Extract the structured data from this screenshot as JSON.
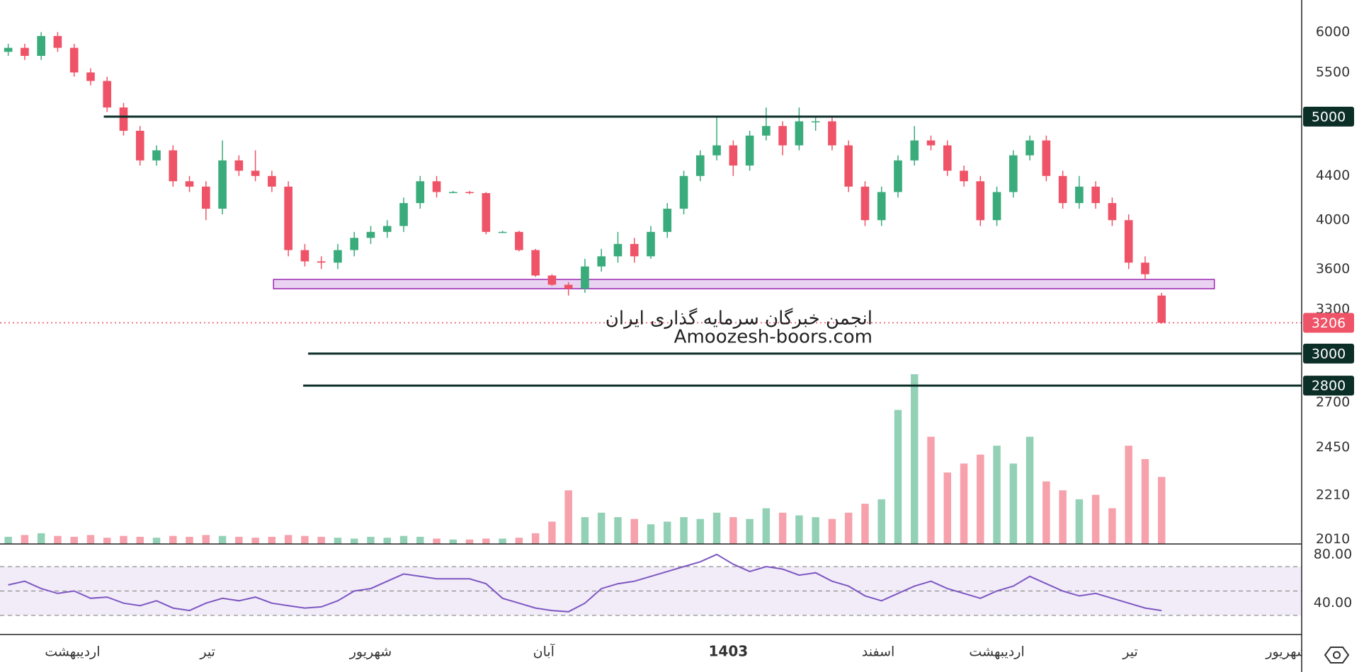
{
  "chart_data": {
    "type": "candlestick",
    "ohlc": [
      [
        5750,
        5850,
        5700,
        5800
      ],
      [
        5800,
        5850,
        5650,
        5700
      ],
      [
        5700,
        6000,
        5650,
        5950
      ],
      [
        5950,
        6000,
        5750,
        5800
      ],
      [
        5800,
        5850,
        5450,
        5500
      ],
      [
        5500,
        5550,
        5350,
        5400
      ],
      [
        5400,
        5450,
        5050,
        5100
      ],
      [
        5100,
        5150,
        4800,
        4850
      ],
      [
        4850,
        4900,
        4500,
        4550
      ],
      [
        4550,
        4700,
        4500,
        4650
      ],
      [
        4650,
        4700,
        4300,
        4350
      ],
      [
        4350,
        4400,
        4250,
        4300
      ],
      [
        4300,
        4350,
        4000,
        4100
      ],
      [
        4100,
        4750,
        4050,
        4550
      ],
      [
        4550,
        4600,
        4400,
        4450
      ],
      [
        4450,
        4650,
        4350,
        4400
      ],
      [
        4400,
        4450,
        4250,
        4300
      ],
      [
        4300,
        4350,
        3700,
        3750
      ],
      [
        3750,
        3800,
        3620,
        3660
      ],
      [
        3660,
        3700,
        3600,
        3650
      ],
      [
        3650,
        3800,
        3600,
        3750
      ],
      [
        3750,
        3900,
        3700,
        3850
      ],
      [
        3850,
        3950,
        3800,
        3900
      ],
      [
        3900,
        4000,
        3850,
        3950
      ],
      [
        3950,
        4200,
        3900,
        4150
      ],
      [
        4150,
        4400,
        4100,
        4350
      ],
      [
        4350,
        4400,
        4200,
        4250
      ],
      [
        4250,
        4260,
        4240,
        4250
      ],
      [
        4250,
        4260,
        4230,
        4240
      ],
      [
        4240,
        4250,
        3880,
        3900
      ],
      [
        3900,
        3910,
        3890,
        3900
      ],
      [
        3900,
        3910,
        3740,
        3750
      ],
      [
        3750,
        3760,
        3540,
        3550
      ],
      [
        3550,
        3560,
        3470,
        3480
      ],
      [
        3480,
        3500,
        3400,
        3450
      ],
      [
        3450,
        3680,
        3420,
        3620
      ],
      [
        3620,
        3760,
        3580,
        3700
      ],
      [
        3700,
        3900,
        3650,
        3800
      ],
      [
        3800,
        3850,
        3650,
        3700
      ],
      [
        3700,
        3950,
        3680,
        3900
      ],
      [
        3900,
        4150,
        3850,
        4100
      ],
      [
        4100,
        4450,
        4050,
        4400
      ],
      [
        4400,
        4650,
        4350,
        4600
      ],
      [
        4600,
        5000,
        4550,
        4700
      ],
      [
        4700,
        4750,
        4400,
        4500
      ],
      [
        4500,
        4850,
        4450,
        4800
      ],
      [
        4800,
        5100,
        4750,
        4900
      ],
      [
        4900,
        4950,
        4600,
        4700
      ],
      [
        4700,
        5100,
        4650,
        4950
      ],
      [
        4950,
        5000,
        4850,
        4950
      ],
      [
        4950,
        5000,
        4650,
        4700
      ],
      [
        4700,
        4750,
        4250,
        4300
      ],
      [
        4300,
        4350,
        3950,
        4000
      ],
      [
        4000,
        4300,
        3950,
        4250
      ],
      [
        4250,
        4600,
        4200,
        4550
      ],
      [
        4550,
        4900,
        4500,
        4750
      ],
      [
        4750,
        4800,
        4650,
        4700
      ],
      [
        4700,
        4750,
        4400,
        4450
      ],
      [
        4450,
        4500,
        4300,
        4350
      ],
      [
        4350,
        4400,
        3950,
        4000
      ],
      [
        4000,
        4300,
        3950,
        4250
      ],
      [
        4250,
        4650,
        4200,
        4600
      ],
      [
        4600,
        4800,
        4550,
        4750
      ],
      [
        4750,
        4800,
        4350,
        4400
      ],
      [
        4400,
        4450,
        4100,
        4150
      ],
      [
        4150,
        4400,
        4100,
        4300
      ],
      [
        4300,
        4350,
        4100,
        4150
      ],
      [
        4150,
        4200,
        3950,
        4000
      ],
      [
        4000,
        4050,
        3600,
        3650
      ],
      [
        3650,
        3700,
        3520,
        3560
      ],
      [
        3400,
        3420,
        3200,
        3206
      ]
    ],
    "up_color": "#3aab7b",
    "down_color": "#ef5367",
    "volume": [
      8,
      10,
      12,
      9,
      8,
      10,
      7,
      9,
      8,
      7,
      9,
      8,
      10,
      9,
      8,
      7,
      8,
      10,
      9,
      8,
      7,
      6,
      8,
      7,
      9,
      8,
      6,
      5,
      5,
      6,
      6,
      7,
      12,
      25,
      60,
      30,
      35,
      30,
      28,
      22,
      25,
      30,
      28,
      35,
      30,
      28,
      40,
      35,
      32,
      30,
      28,
      35,
      45,
      50,
      150,
      190,
      120,
      80,
      90,
      100,
      110,
      90,
      120,
      70,
      60,
      50,
      55,
      40,
      110,
      95,
      75
    ],
    "ylim": [
      1990,
      6430
    ],
    "log_scale": true,
    "yticks": [
      2010,
      2210,
      2450,
      2700,
      3300,
      3600,
      4000,
      4400,
      5500,
      6000
    ],
    "xlim": [
      -0.5,
      78.5
    ],
    "xticks": [
      {
        "value": 3.9,
        "label": "اردیبهشت"
      },
      {
        "value": 12.1,
        "label": "تیر"
      },
      {
        "value": 22,
        "label": "شهریور"
      },
      {
        "value": 32.5,
        "label": "آبان"
      },
      {
        "value": 43.7,
        "label": "1403",
        "bold": true
      },
      {
        "value": 52.8,
        "label": "اسفند"
      },
      {
        "value": 60,
        "label": "اردیبهشت"
      },
      {
        "value": 68.1,
        "label": "تیر"
      },
      {
        "value": 77.6,
        "label": "شهریور"
      }
    ],
    "levels": [
      {
        "value": 5000,
        "from": 5.8
      },
      {
        "value": 3000,
        "from": 18.2
      },
      {
        "value": 2800,
        "from": 17.9
      }
    ],
    "level_color": "#0b2e27",
    "last_price": {
      "value": 3206,
      "color": "#ef5367"
    },
    "zone": {
      "x": [
        16.1,
        73.2
      ],
      "y": [
        3450,
        3520
      ],
      "color": "#9c27b0"
    },
    "watermark": [
      "انجمن خبرگان سرمایه گذاری ایران",
      "Amoozesh-boors.com"
    ],
    "rsi": {
      "values": [
        55,
        58,
        52,
        48,
        50,
        44,
        45,
        40,
        38,
        42,
        36,
        34,
        40,
        44,
        42,
        45,
        40,
        38,
        36,
        37,
        42,
        50,
        52,
        58,
        64,
        62,
        60,
        60,
        60,
        56,
        44,
        40,
        36,
        34,
        33,
        40,
        52,
        56,
        58,
        62,
        66,
        70,
        74,
        80,
        72,
        66,
        70,
        68,
        63,
        65,
        58,
        54,
        46,
        42,
        48,
        54,
        58,
        52,
        48,
        44,
        50,
        54,
        62,
        56,
        50,
        46,
        48,
        44,
        40,
        36,
        34
      ],
      "color": "#7e57c2",
      "ylim": [
        14.3,
        88.6
      ],
      "yticks": [
        {
          "value": 80,
          "label": "80.00"
        },
        {
          "value": 40,
          "label": "40.00"
        }
      ],
      "levels": [
        30,
        50,
        70
      ]
    }
  }
}
